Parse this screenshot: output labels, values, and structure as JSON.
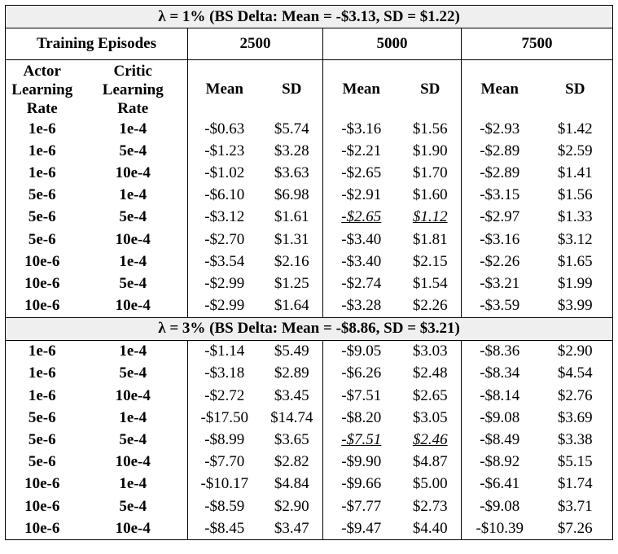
{
  "table": {
    "sections": [
      {
        "title": "λ = 1% (BS Delta: Mean = -$3.13, SD = $1.22)",
        "rows": [
          {
            "actor": "1e-6",
            "critic": "1e-4",
            "cells": [
              "-$0.63",
              "$5.74",
              "-$3.16",
              "$1.56",
              "-$2.93",
              "$1.42"
            ]
          },
          {
            "actor": "1e-6",
            "critic": "5e-4",
            "cells": [
              "-$1.23",
              "$3.28",
              "-$2.21",
              "$1.90",
              "-$2.89",
              "$2.59"
            ]
          },
          {
            "actor": "1e-6",
            "critic": "10e-4",
            "cells": [
              "-$1.02",
              "$3.63",
              "-$2.65",
              "$1.70",
              "-$2.89",
              "$1.41"
            ]
          },
          {
            "actor": "5e-6",
            "critic": "1e-4",
            "cells": [
              "-$6.10",
              "$6.98",
              "-$2.91",
              "$1.60",
              "-$3.15",
              "$1.56"
            ]
          },
          {
            "actor": "5e-6",
            "critic": "5e-4",
            "cells": [
              "-$3.12",
              "$1.61",
              "-$2.65",
              "$1.12",
              "-$2.97",
              "$1.33"
            ]
          },
          {
            "actor": "5e-6",
            "critic": "10e-4",
            "cells": [
              "-$2.70",
              "$1.31",
              "-$3.40",
              "$1.81",
              "-$3.16",
              "$3.12"
            ]
          },
          {
            "actor": "10e-6",
            "critic": "1e-4",
            "cells": [
              "-$3.54",
              "$2.16",
              "-$3.40",
              "$2.15",
              "-$2.26",
              "$1.65"
            ]
          },
          {
            "actor": "10e-6",
            "critic": "5e-4",
            "cells": [
              "-$2.99",
              "$1.25",
              "-$2.74",
              "$1.54",
              "-$3.21",
              "$1.99"
            ]
          },
          {
            "actor": "10e-6",
            "critic": "10e-4",
            "cells": [
              "-$2.99",
              "$1.64",
              "-$3.28",
              "$2.26",
              "-$3.59",
              "$3.99"
            ]
          }
        ]
      },
      {
        "title": "λ = 3% (BS Delta: Mean = -$8.86, SD = $3.21)",
        "rows": [
          {
            "actor": "1e-6",
            "critic": "1e-4",
            "cells": [
              "-$1.14",
              "$5.49",
              "-$9.05",
              "$3.03",
              "-$8.36",
              "$2.90"
            ]
          },
          {
            "actor": "1e-6",
            "critic": "5e-4",
            "cells": [
              "-$3.18",
              "$2.89",
              "-$6.26",
              "$2.48",
              "-$8.34",
              "$4.54"
            ]
          },
          {
            "actor": "1e-6",
            "critic": "10e-4",
            "cells": [
              "-$2.72",
              "$3.45",
              "-$7.51",
              "$2.65",
              "-$8.14",
              "$2.76"
            ]
          },
          {
            "actor": "5e-6",
            "critic": "1e-4",
            "cells": [
              "-$17.50",
              "$14.74",
              "-$8.20",
              "$3.05",
              "-$9.08",
              "$3.69"
            ]
          },
          {
            "actor": "5e-6",
            "critic": "5e-4",
            "cells": [
              "-$8.99",
              "$3.65",
              "-$7.51",
              "$2.46",
              "-$8.49",
              "$3.38"
            ]
          },
          {
            "actor": "5e-6",
            "critic": "10e-4",
            "cells": [
              "-$7.70",
              "$2.82",
              "-$9.90",
              "$4.87",
              "-$8.92",
              "$5.15"
            ]
          },
          {
            "actor": "10e-6",
            "critic": "1e-4",
            "cells": [
              "-$10.17",
              "$4.84",
              "-$9.66",
              "$5.00",
              "-$6.41",
              "$1.74"
            ]
          },
          {
            "actor": "10e-6",
            "critic": "5e-4",
            "cells": [
              "-$8.59",
              "$2.90",
              "-$7.77",
              "$2.73",
              "-$9.08",
              "$3.71"
            ]
          },
          {
            "actor": "10e-6",
            "critic": "10e-4",
            "cells": [
              "-$8.45",
              "$3.47",
              "-$9.47",
              "$4.40",
              "-$10.39",
              "$7.26"
            ]
          }
        ]
      }
    ],
    "header": {
      "training_episodes_label": "Training Episodes",
      "episodes": [
        "2500",
        "5000",
        "7500"
      ],
      "actor_label": [
        "Actor",
        "Learning",
        "Rate"
      ],
      "critic_label": [
        "Critic",
        "Learning",
        "Rate"
      ],
      "mean_label": "Mean",
      "sd_label": "SD"
    }
  }
}
